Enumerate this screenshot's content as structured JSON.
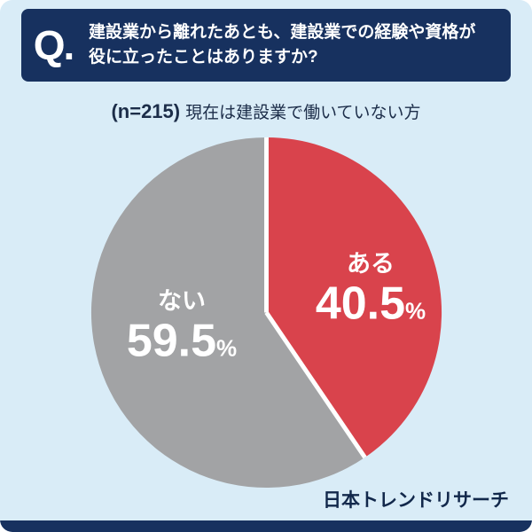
{
  "header": {
    "q_label": "Q.",
    "question_line1": "建設業から離れたあとも、建設業での経験や資格が",
    "question_line2": "役に立ったことはありますか?"
  },
  "subtitle": {
    "sample_label": "(n=215)",
    "description": "現在は建設業で働いていない方"
  },
  "chart_data": {
    "type": "pie",
    "title": "建設業から離れたあとも、建設業での経験や資格が役に立ったことはありますか?",
    "n": 215,
    "labels": [
      "ある",
      "ない"
    ],
    "values": [
      40.5,
      59.5
    ],
    "unit": "%",
    "colors": [
      "#d9434c",
      "#a2a3a5"
    ],
    "start_angle_deg": -90,
    "direction": "clockwise",
    "legend_position": "inside"
  },
  "footer": {
    "brand": "日本トレンドリサーチ"
  },
  "colors": {
    "background": "#d9ecf7",
    "banner_navy": "#17315f",
    "text_dark": "#1c2d49",
    "slice_label_text": "#ffffff"
  }
}
